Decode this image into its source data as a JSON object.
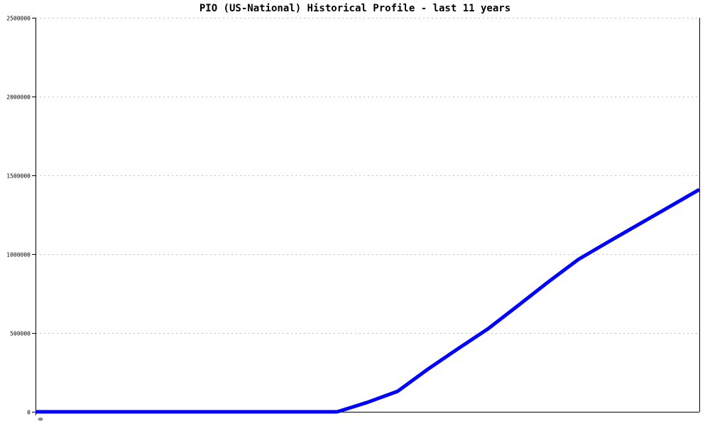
{
  "chart_data": {
    "type": "line",
    "title": "PIO (US-National) Historical Profile - last 11 years",
    "xlabel": "",
    "ylabel": "",
    "x_tick_labels": [
      "0"
    ],
    "y_ticks": [
      0,
      500000,
      1000000,
      1500000,
      2000000,
      2500000
    ],
    "y_tick_labels": [
      "0",
      "500000",
      "1000000",
      "1500000",
      "2000000",
      "2500000"
    ],
    "ylim": [
      0,
      2500000
    ],
    "xlim": [
      0,
      22
    ],
    "grid": true,
    "line_color": "#0000ff",
    "x": [
      0,
      1,
      2,
      3,
      4,
      5,
      6,
      7,
      8,
      9,
      10,
      11,
      12,
      13,
      14,
      15,
      16,
      17,
      18,
      19,
      20,
      21,
      22
    ],
    "values": [
      0,
      0,
      0,
      0,
      0,
      0,
      0,
      0,
      0,
      0,
      0,
      60000,
      130000,
      270000,
      400000,
      527000,
      675000,
      825000,
      968000,
      1080000,
      1190000,
      1300000,
      1410000
    ]
  }
}
